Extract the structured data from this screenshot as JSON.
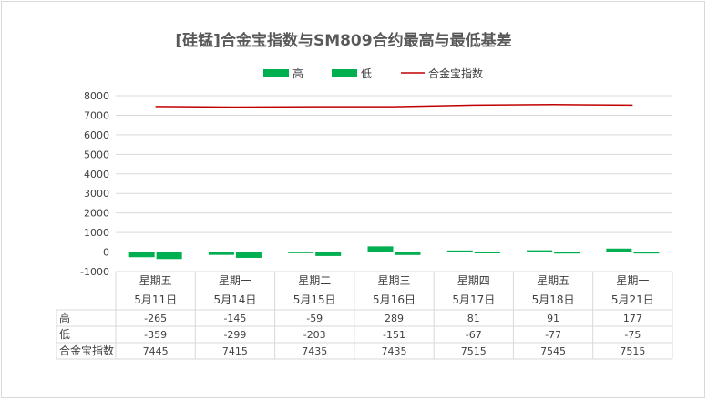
{
  "chart_data": {
    "type": "bar",
    "title": "[硅锰]合金宝指数与SM809合约最高与最低基差",
    "categories": [
      {
        "day": "星期五",
        "date": "5月11日"
      },
      {
        "day": "星期一",
        "date": "5月14日"
      },
      {
        "day": "星期二",
        "date": "5月15日"
      },
      {
        "day": "星期三",
        "date": "5月16日"
      },
      {
        "day": "星期四",
        "date": "5月17日"
      },
      {
        "day": "星期五",
        "date": "5月18日"
      },
      {
        "day": "星期一",
        "date": "5月21日"
      }
    ],
    "series": [
      {
        "name": "高",
        "kind": "bar",
        "color": "#00b050",
        "values": [
          -265,
          -145,
          -59,
          289,
          81,
          91,
          177
        ]
      },
      {
        "name": "低",
        "kind": "bar",
        "color": "#00b050",
        "values": [
          -359,
          -299,
          -203,
          -151,
          -67,
          -77,
          -75
        ]
      },
      {
        "name": "合金宝指数",
        "kind": "line",
        "color": "#c00000",
        "values": [
          7445,
          7415,
          7435,
          7435,
          7515,
          7545,
          7515
        ]
      }
    ],
    "ylim": [
      -1000,
      8000
    ],
    "yticks": [
      8000,
      7000,
      6000,
      5000,
      4000,
      3000,
      2000,
      1000,
      0,
      -1000
    ],
    "grid": true,
    "legend_position": "top-center",
    "data_table": true,
    "xlabel": "",
    "ylabel": ""
  }
}
